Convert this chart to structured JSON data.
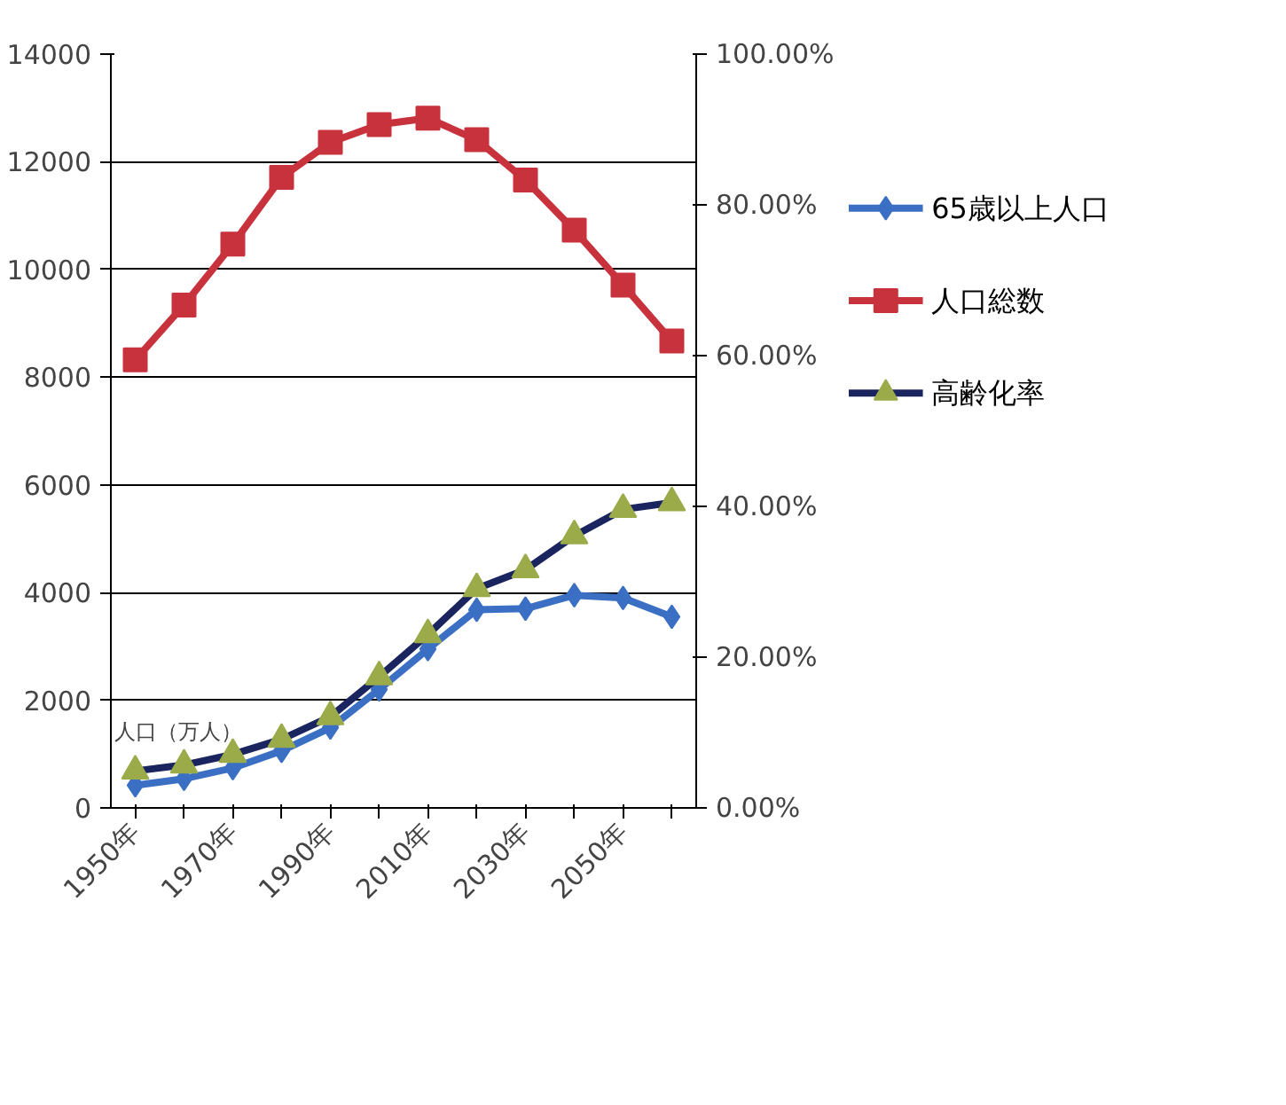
{
  "chart_data": {
    "type": "line",
    "categories": [
      "1950年",
      null,
      "1970年",
      null,
      "1990年",
      null,
      "2010年",
      null,
      "2030年",
      null,
      "2050年",
      null
    ],
    "ylabel": "人口（万人）",
    "series": [
      {
        "name": "65歳以上人口",
        "color": "#3a6fc4",
        "marker": "diamond",
        "values": [
          420,
          540,
          740,
          1060,
          1490,
          2200,
          2950,
          3680,
          3700,
          3950,
          3900,
          3550
        ]
      },
      {
        "name": "人口総数",
        "color": "#c8323c",
        "marker": "square",
        "values": [
          8320,
          9340,
          10470,
          11710,
          12360,
          12690,
          12810,
          12410,
          11660,
          10730,
          9710,
          8670
        ]
      },
      {
        "name": "高齢化率",
        "color": "#1a2560",
        "marker": "triangle",
        "axis": "y2",
        "values": [
          4.9,
          5.7,
          7.1,
          9.1,
          12.1,
          17.4,
          23.0,
          29.1,
          31.6,
          36.1,
          39.6,
          40.5
        ]
      }
    ],
    "ylim": [
      0,
      14000
    ],
    "yticks": [
      0,
      2000,
      4000,
      6000,
      8000,
      10000,
      12000,
      14000
    ],
    "y2lim": [
      0,
      100
    ],
    "y2ticks": [
      {
        "value": 0,
        "label": "0.00%"
      },
      {
        "value": 20,
        "label": "20.00%"
      },
      {
        "value": 40,
        "label": "40.00%"
      },
      {
        "value": 60,
        "label": "60.00%"
      },
      {
        "value": 80,
        "label": "80.00%"
      },
      {
        "value": 100,
        "label": "100.00%"
      }
    ],
    "grid": "y",
    "legend": "right"
  }
}
